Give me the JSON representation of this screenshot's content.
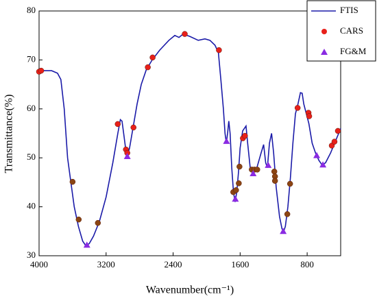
{
  "chart_data": {
    "type": "line",
    "xlabel": "Wavenumber(cm⁻¹)",
    "ylabel": "Transmittance(%)",
    "xlim": [
      4000,
      400
    ],
    "xticks": [
      4000,
      3200,
      2400,
      1600,
      800
    ],
    "ylim": [
      30,
      80
    ],
    "yticks": [
      30,
      40,
      50,
      60,
      70,
      80
    ],
    "legend": "upper right",
    "series": [
      {
        "name": "FTIS",
        "type": "line",
        "color": "#1a1aa8",
        "x": [
          4000,
          3950,
          3850,
          3780,
          3740,
          3700,
          3660,
          3620,
          3580,
          3530,
          3480,
          3440,
          3400,
          3350,
          3280,
          3200,
          3120,
          3060,
          3030,
          3010,
          2990,
          2960,
          2945,
          2920,
          2880,
          2830,
          2780,
          2720,
          2650,
          2560,
          2450,
          2380,
          2330,
          2280,
          2200,
          2100,
          2020,
          1960,
          1900,
          1860,
          1830,
          1800,
          1780,
          1765,
          1750,
          1735,
          1720,
          1700,
          1680,
          1660,
          1640,
          1620,
          1600,
          1570,
          1530,
          1510,
          1480,
          1450,
          1400,
          1350,
          1320,
          1295,
          1275,
          1250,
          1225,
          1200,
          1170,
          1130,
          1100,
          1080,
          1060,
          1030,
          1000,
          970,
          940,
          910,
          880,
          860,
          840,
          810,
          780,
          740,
          700,
          660,
          620,
          580,
          520,
          460,
          400
        ],
        "values": [
          67.5,
          67.8,
          67.8,
          67.3,
          66,
          60,
          50,
          45,
          40,
          36,
          33,
          32,
          32.5,
          34,
          37,
          42,
          49,
          55,
          57.8,
          57.5,
          55,
          51,
          50.5,
          52,
          56,
          61,
          65,
          68,
          70,
          72,
          74,
          75,
          74.6,
          75.3,
          74.8,
          74,
          74.3,
          74,
          73,
          71.5,
          66,
          60,
          55,
          53,
          55,
          57.5,
          55,
          48,
          43,
          41,
          43,
          47,
          52,
          55.5,
          56.5,
          53,
          48,
          47.5,
          48,
          51,
          52.7,
          49,
          48,
          53,
          55,
          51,
          44,
          38,
          35.5,
          35,
          36,
          40,
          46,
          53,
          59,
          61,
          63.3,
          63.2,
          61,
          59,
          57,
          53,
          51,
          49.5,
          48.5,
          49,
          51,
          53.5,
          56
        ]
      },
      {
        "name": "CARS",
        "type": "circle",
        "color": "#e8201a",
        "x": [
          4000,
          3975,
          3061,
          2963,
          2947,
          2873,
          2702,
          2645,
          2261,
          1853,
          1567,
          1543,
          914,
          784,
          776,
          506,
          474,
          433,
          3600,
          3527,
          3298,
          1682,
          1649,
          1616,
          1608,
          1461,
          1429,
          1396,
          1192,
          1184,
          1184,
          1004,
          1037
        ],
        "values": [
          67.6,
          67.8,
          56.9,
          51.7,
          51,
          56.2,
          68.5,
          70.5,
          75.3,
          72,
          54,
          54.5,
          60.2,
          59.2,
          58.5,
          52.5,
          53.3,
          55.5,
          45.1,
          37.4,
          36.7,
          43,
          43.4,
          44.8,
          48.2,
          47.6,
          47.6,
          47.6,
          47.2,
          46.2,
          45.3,
          44.7,
          38.5
        ],
        "colors": [
          "#e8201a",
          "#e8201a",
          "#e8201a",
          "#e8201a",
          "#e8201a",
          "#e8201a",
          "#e8201a",
          "#e8201a",
          "#e8201a",
          "#e8201a",
          "#e8201a",
          "#e8201a",
          "#e8201a",
          "#e8201a",
          "#e8201a",
          "#e8201a",
          "#e8201a",
          "#e8201a",
          "#8b4513",
          "#8b4513",
          "#8b4513",
          "#8b4513",
          "#8b4513",
          "#8b4513",
          "#8b4513",
          "#8b4513",
          "#8b4513",
          "#8b4513",
          "#8b4513",
          "#8b4513",
          "#8b4513",
          "#8b4513",
          "#8b4513"
        ]
      },
      {
        "name": "FG&M",
        "type": "triangle",
        "color": "#8a2be2",
        "x": [
          3429,
          2947,
          1763,
          1657,
          1445,
          1265,
          1086,
          686,
          612
        ],
        "values": [
          32.2,
          50.3,
          53.4,
          41.6,
          46.8,
          48.5,
          35,
          50.5,
          48.6
        ]
      }
    ]
  }
}
